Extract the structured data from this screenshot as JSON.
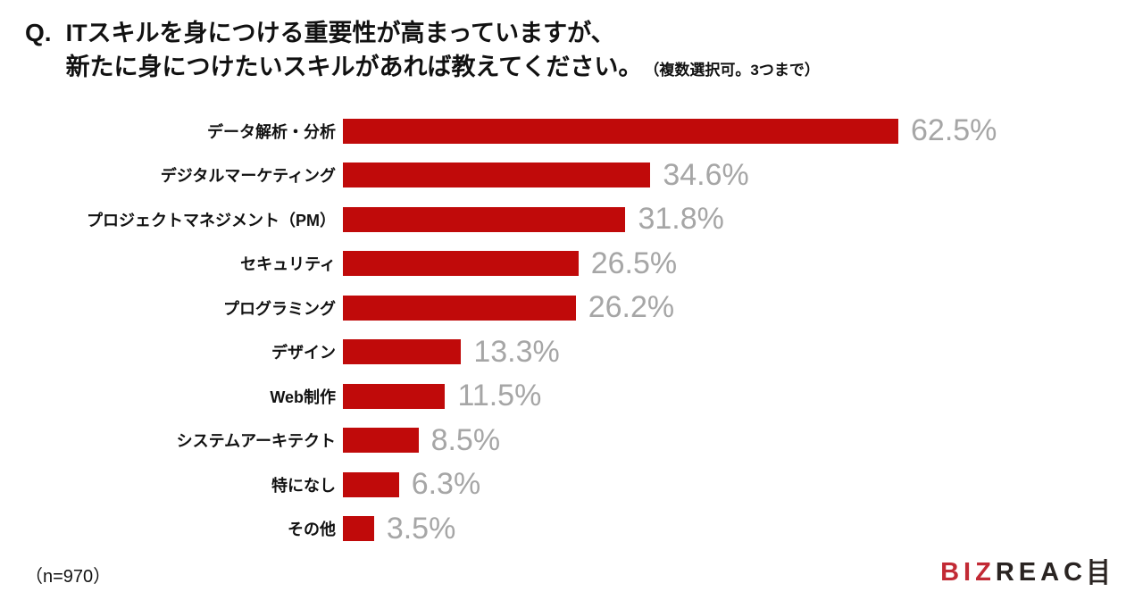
{
  "title": {
    "prefix": "Q.",
    "line1": "ITスキルを身につける重要性が高まっていますが、",
    "line2": "新たに身につけたいスキルがあれば教えてください。",
    "note": "（複数選択可。3つまで）"
  },
  "chart_data": {
    "type": "bar",
    "orientation": "horizontal",
    "title": "新たに身につけたいITスキル",
    "categories": [
      "データ解析・分析",
      "デジタルマーケティング",
      "プロジェクトマネジメント（PM）",
      "セキュリティ",
      "プログラミング",
      "デザイン",
      "Web制作",
      "システムアーキテクト",
      "特になし",
      "その他"
    ],
    "values": [
      62.5,
      34.6,
      31.8,
      26.5,
      26.2,
      13.3,
      11.5,
      8.5,
      6.3,
      3.5
    ],
    "value_labels": [
      "62.5%",
      "34.6%",
      "31.8%",
      "26.5%",
      "26.2%",
      "13.3%",
      "11.5%",
      "8.5%",
      "6.3%",
      "3.5%"
    ],
    "unit": "%",
    "xlim": [
      0,
      62.5
    ],
    "grid": false,
    "legend": false,
    "bar_color": "#C00A0A",
    "value_label_color": "#A6A6A6"
  },
  "footer": {
    "sample_size": "（n=970）"
  },
  "logo": {
    "red_part": "BIZ",
    "dark_part": "REAC",
    "ladder_letter": "H",
    "red_color": "#C22A35",
    "dark_color": "#2A2422"
  }
}
